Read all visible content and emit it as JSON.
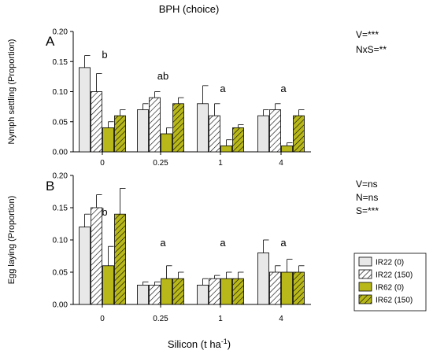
{
  "figure": {
    "title": "BPH (choice)",
    "xlabel_main": "Silicon (t ha",
    "xlabel_sup": "-1",
    "xlabel_close": ")"
  },
  "legend": {
    "placement": "right",
    "entries": [
      {
        "label": "IR22 (0)",
        "style": "light"
      },
      {
        "label": "IR22 (150)",
        "style": "light-hatch"
      },
      {
        "label": "IR62 (0)",
        "style": "olive"
      },
      {
        "label": "IR62 (150)",
        "style": "olive-hatch"
      }
    ]
  },
  "colors": {
    "light": "#e8e8e8",
    "olive": "#b8b81a",
    "stroke": "#000000"
  },
  "chart_data": [
    {
      "type": "bar",
      "panel_label": "A",
      "ylabel": "Nymph settling (Proportion)",
      "ylim": [
        0,
        0.2
      ],
      "yticks": [
        "0.00",
        "0.05",
        "0.10",
        "0.15",
        "0.20"
      ],
      "categories": [
        "0",
        "0.25",
        "1",
        "4"
      ],
      "series": [
        {
          "name": "IR22 (0)",
          "values": [
            0.14,
            0.07,
            0.08,
            0.06
          ],
          "errors": [
            0.02,
            0.01,
            0.03,
            0.01
          ]
        },
        {
          "name": "IR22 (150)",
          "values": [
            0.1,
            0.09,
            0.06,
            0.07
          ],
          "errors": [
            0.03,
            0.01,
            0.02,
            0.01
          ]
        },
        {
          "name": "IR62 (0)",
          "values": [
            0.04,
            0.03,
            0.01,
            0.01
          ],
          "errors": [
            0.01,
            0.01,
            0.01,
            0.005
          ]
        },
        {
          "name": "IR62 (150)",
          "values": [
            0.06,
            0.08,
            0.04,
            0.06
          ],
          "errors": [
            0.01,
            0.01,
            0.005,
            0.01
          ]
        }
      ],
      "group_letters": [
        "b",
        "ab",
        "a",
        "a"
      ],
      "stats": [
        "V=***",
        "NxS=**"
      ]
    },
    {
      "type": "bar",
      "panel_label": "B",
      "ylabel": "Egg laying (Proportion)",
      "ylim": [
        0,
        0.2
      ],
      "yticks": [
        "0.00",
        "0.05",
        "0.10",
        "0.15",
        "0.20"
      ],
      "categories": [
        "0",
        "0.25",
        "1",
        "4"
      ],
      "series": [
        {
          "name": "IR22 (0)",
          "values": [
            0.12,
            0.03,
            0.03,
            0.08
          ],
          "errors": [
            0.02,
            0.005,
            0.01,
            0.02
          ]
        },
        {
          "name": "IR22 (150)",
          "values": [
            0.15,
            0.03,
            0.04,
            0.05
          ],
          "errors": [
            0.02,
            0.005,
            0.005,
            0.01
          ]
        },
        {
          "name": "IR62 (0)",
          "values": [
            0.06,
            0.04,
            0.04,
            0.05
          ],
          "errors": [
            0.03,
            0.02,
            0.01,
            0.02
          ]
        },
        {
          "name": "IR62 (150)",
          "values": [
            0.14,
            0.04,
            0.04,
            0.05
          ],
          "errors": [
            0.04,
            0.01,
            0.01,
            0.01
          ]
        }
      ],
      "group_letters": [
        "b",
        "a",
        "a",
        "a"
      ],
      "stats": [
        "V=ns",
        "N=ns",
        "S=***"
      ]
    }
  ]
}
